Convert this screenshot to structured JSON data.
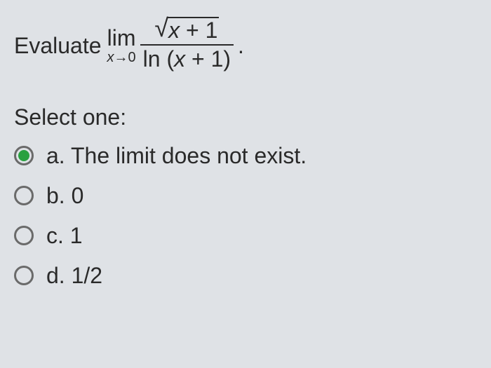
{
  "question": {
    "prefix": "Evaluate",
    "limit_symbol": "lim",
    "limit_var": "x",
    "limit_arrow": "→",
    "limit_target": "0",
    "numerator_radicand_x": "x",
    "numerator_plus": " + 1",
    "denominator_fn": "ln",
    "denominator_arg_open": " (",
    "denominator_arg_x": "x",
    "denominator_arg_rest": " + 1)",
    "period": "."
  },
  "select_label": "Select one:",
  "options": {
    "a": {
      "letter": "a.",
      "text": " The limit does not exist.",
      "selected": true
    },
    "b": {
      "letter": "b.",
      "text": " 0",
      "selected": false
    },
    "c": {
      "letter": "c.",
      "text": " 1",
      "selected": false
    },
    "d": {
      "letter": "d.",
      "text": " 1/2",
      "selected": false
    }
  },
  "style": {
    "background": "#dfe2e6",
    "text_color": "#2a2a2a",
    "radio_border": "#6a6a6a",
    "radio_selected_color": "#2aa040",
    "font_size_main": 32,
    "font_size_subscript": 20
  }
}
